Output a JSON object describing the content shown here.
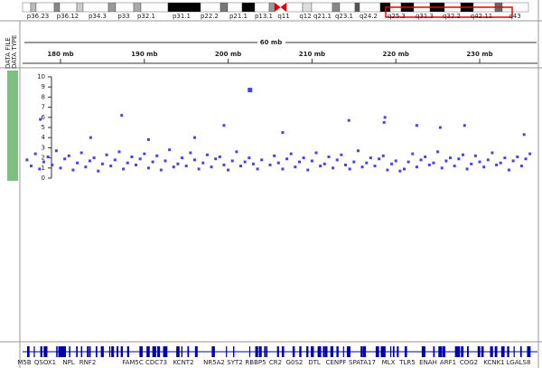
{
  "ideogram": {
    "bands": [
      "p36.23",
      "p36.12",
      "p34.3",
      "p33",
      "p32.1",
      "p31.1",
      "p22.2",
      "p21.1",
      "p13.1",
      "q11",
      "q12",
      "q21.1",
      "q23.1",
      "q24.2",
      "q25.3",
      "q31.3",
      "q32.2",
      "q42.11",
      "q43"
    ]
  },
  "ruler": {
    "span": "60 mb",
    "ticks": [
      {
        "value": 180,
        "label": "180 mb"
      },
      {
        "value": 190,
        "label": "190 mb"
      },
      {
        "value": 200,
        "label": "200 mb"
      },
      {
        "value": 210,
        "label": "210 mb"
      },
      {
        "value": 220,
        "label": "220 mb"
      },
      {
        "value": 230,
        "label": "230 mb"
      }
    ]
  },
  "panel": {
    "labels": [
      "DATA FILE",
      "DATA TYPE"
    ]
  },
  "track": {
    "ylim": [
      0,
      10
    ],
    "yticks": [
      0,
      1,
      2,
      3,
      4,
      5,
      6,
      7,
      8,
      9,
      10
    ],
    "color": "#4444ee",
    "x": [
      176,
      176.5,
      177,
      177.5,
      178,
      178.5,
      179,
      179.5,
      180,
      180.5,
      181,
      181.5,
      182,
      182.5,
      183,
      183.5,
      184,
      184.5,
      185,
      185.5,
      186,
      186.5,
      187,
      187.5,
      188,
      188.5,
      189,
      189.5,
      190,
      190.5,
      191,
      191.5,
      192,
      192.5,
      193,
      193.5,
      194,
      194.5,
      195,
      195.5,
      196,
      196.5,
      197,
      197.5,
      198,
      198.5,
      199,
      199.5,
      200,
      200.5,
      201,
      201.5,
      202,
      202.5,
      203,
      203.5,
      204,
      205,
      205.5,
      206,
      206.5,
      207,
      207.5,
      208,
      208.5,
      209,
      209.5,
      210,
      210.5,
      211,
      211.5,
      212,
      212.5,
      213,
      213.5,
      214,
      214.5,
      215,
      215.5,
      216,
      216.5,
      217,
      217.5,
      218,
      218.5,
      219,
      219.5,
      220,
      220.5,
      221,
      221.5,
      222,
      222.5,
      223,
      223.5,
      224,
      224.5,
      225,
      225.5,
      226,
      226.5,
      227,
      227.5,
      228,
      228.5,
      229,
      229.5,
      230,
      230.5,
      231,
      231.5,
      232,
      232.5,
      233,
      233.5,
      234,
      234.5,
      235,
      235.5,
      236,
      202.6,
      187.3,
      199.5,
      214.4,
      218.7,
      218.6,
      222.5,
      225.3,
      228.2,
      177.6,
      183.6,
      190.5,
      196.0,
      206.5,
      235.3
    ],
    "y": [
      1.8,
      1.2,
      2.4,
      0.9,
      1.6,
      2.1,
      1.3,
      2.7,
      1.0,
      1.9,
      2.2,
      0.8,
      1.5,
      2.5,
      1.1,
      1.7,
      2.0,
      0.7,
      1.4,
      2.3,
      1.2,
      1.8,
      2.6,
      0.9,
      1.5,
      2.1,
      1.3,
      1.9,
      2.4,
      1.0,
      1.6,
      2.2,
      0.8,
      1.7,
      2.8,
      1.1,
      1.4,
      2.0,
      1.2,
      2.5,
      1.8,
      0.9,
      1.5,
      2.3,
      1.1,
      1.9,
      2.1,
      1.3,
      0.8,
      1.7,
      2.6,
      1.2,
      1.6,
      2.0,
      1.4,
      0.9,
      1.8,
      1.3,
      2.2,
      1.5,
      0.9,
      1.9,
      2.4,
      1.1,
      1.6,
      2.0,
      0.8,
      1.7,
      2.5,
      1.2,
      1.4,
      2.1,
      1.0,
      1.8,
      2.3,
      1.3,
      0.9,
      1.6,
      2.7,
      1.1,
      1.5,
      2.0,
      1.2,
      1.9,
      2.2,
      0.8,
      1.4,
      1.7,
      0.7,
      0.9,
      1.6,
      2.4,
      1.1,
      1.8,
      2.1,
      1.3,
      1.5,
      2.6,
      1.0,
      1.7,
      2.0,
      1.2,
      1.9,
      2.3,
      0.9,
      1.4,
      2.2,
      1.6,
      1.1,
      1.8,
      2.5,
      1.3,
      1.5,
      2.0,
      0.8,
      1.7,
      2.1,
      1.2,
      1.9,
      2.4,
      8.7,
      6.2,
      5.2,
      5.7,
      6.0,
      5.5,
      5.2,
      5.0,
      5.2,
      5.8,
      4.0,
      3.8,
      4.0,
      4.5,
      4.3
    ]
  },
  "genes": [
    "M5B",
    "QSOX1",
    "NPL",
    "RNF2",
    "FAM5C",
    "CDC73",
    "KCNT2",
    "NR5A2",
    "SYT2",
    "RBBP5",
    "CR2",
    "G0S2",
    "DTL",
    "CENPF",
    "SPATA17",
    "MLX",
    "TLR5",
    "ENAH",
    "ARF1",
    "COG2",
    "KCNK1",
    "LGALS8"
  ]
}
